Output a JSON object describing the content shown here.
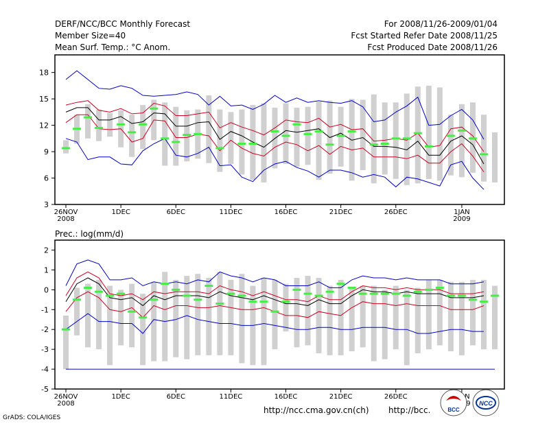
{
  "header": {
    "left": [
      "DERF/NCC/BCC Monthly Forecast",
      "Member Size=40",
      "Mean Surf. Temp.: °C Anom."
    ],
    "right": [
      "For 2008/11/26-2009/01/04",
      "Fcst Started Refer Date 2008/11/25",
      "Fcst Produced Date 2008/11/26"
    ]
  },
  "footer": {
    "url1": "http://ncc.cma.gov.cn(ch)",
    "url2": "http://bcc.",
    "grads": "GrADS: COLA/IGES",
    "logo1": "BCC",
    "logo2": "NCC"
  },
  "colors": {
    "envelope": "#0000cc",
    "spread": "#cc0022",
    "mean": "#000000",
    "obs": "#44ee44",
    "box": "#d0d0d0"
  },
  "chart_data": [
    {
      "type": "line",
      "title": "Mean Surf. Temp.: °C Anom.",
      "x_ticks": [
        "26NOV\n2008",
        "1DEC",
        "6DEC",
        "11DEC",
        "16DEC",
        "21DEC",
        "26DEC",
        "1JAN\n2009"
      ],
      "ylim": [
        3,
        20
      ],
      "y_ticks": [
        3,
        6,
        9,
        12,
        15,
        18
      ],
      "days": 40,
      "series": [
        {
          "name": "max",
          "values": [
            17.2,
            18.2,
            17.2,
            16.2,
            16.1,
            16.5,
            16.2,
            15.4,
            15.3,
            15.4,
            15.5,
            15.8,
            15.5,
            14.3,
            15.3,
            14.2,
            14.3,
            13.8,
            14.4,
            15.4,
            14.6,
            15.1,
            14.6,
            14.8,
            14.6,
            14.5,
            14.8,
            14.1,
            12.4,
            12.6,
            13.5,
            14.2,
            15.2,
            12.0,
            12.1,
            13.1,
            13.8,
            12.6,
            10.4,
            null
          ]
        },
        {
          "name": "upper",
          "values": [
            14.3,
            14.6,
            14.8,
            13.7,
            13.5,
            13.9,
            13.3,
            13.4,
            14.5,
            14.2,
            13.1,
            13.1,
            13.3,
            13.5,
            11.7,
            12.3,
            11.8,
            11.4,
            10.9,
            11.7,
            12.6,
            12.4,
            12.3,
            12.8,
            11.8,
            12.1,
            11.5,
            11.6,
            10.2,
            10.3,
            10.5,
            10.3,
            11.1,
            9.5,
            9.7,
            11.6,
            11.8,
            10.8,
            9.0,
            null
          ]
        },
        {
          "name": "mean",
          "values": [
            13.5,
            14.0,
            14.0,
            12.6,
            12.6,
            13.0,
            12.2,
            12.4,
            13.4,
            13.3,
            11.9,
            11.9,
            12.3,
            12.4,
            10.4,
            11.3,
            10.8,
            10.1,
            9.5,
            10.5,
            11.4,
            11.2,
            11.4,
            11.6,
            10.6,
            11.1,
            10.3,
            10.6,
            9.6,
            9.6,
            9.5,
            9.2,
            10.2,
            8.6,
            8.6,
            10.2,
            10.8,
            9.8,
            7.6,
            null
          ]
        },
        {
          "name": "lower",
          "values": [
            12.3,
            13.2,
            13.2,
            11.6,
            11.5,
            11.6,
            10.1,
            10.5,
            12.6,
            12.5,
            10.6,
            10.6,
            11.0,
            10.8,
            9.1,
            10.3,
            9.4,
            8.8,
            8.5,
            9.5,
            10.1,
            9.8,
            9.1,
            9.7,
            8.7,
            9.6,
            9.2,
            9.4,
            8.4,
            8.4,
            8.4,
            8.2,
            8.6,
            7.7,
            7.7,
            9.0,
            9.9,
            8.5,
            6.7,
            null
          ]
        },
        {
          "name": "min",
          "values": [
            10.5,
            10.1,
            8.1,
            8.4,
            8.4,
            7.6,
            7.5,
            9.1,
            9.9,
            10.5,
            8.6,
            8.4,
            8.8,
            9.5,
            7.4,
            7.5,
            6.1,
            5.6,
            6.9,
            7.6,
            7.9,
            7.2,
            6.8,
            6.1,
            6.9,
            6.9,
            6.6,
            6.1,
            6.4,
            6.1,
            5.0,
            6.1,
            5.9,
            5.5,
            5.1,
            7.5,
            7.9,
            6.0,
            4.7,
            null
          ]
        }
      ],
      "boxes": [
        [
          8.8,
          10.3
        ],
        [
          9.9,
          13.2
        ],
        [
          10.5,
          14.4
        ],
        [
          10.2,
          13.8
        ],
        [
          10.7,
          13.4
        ],
        [
          9.5,
          13.7
        ],
        [
          8.4,
          13.2
        ],
        [
          9.3,
          14.3
        ],
        [
          10.3,
          14.9
        ],
        [
          7.4,
          14.6
        ],
        [
          7.4,
          14.1
        ],
        [
          7.9,
          13.7
        ],
        [
          8.2,
          13.8
        ],
        [
          7.7,
          15.4
        ],
        [
          6.7,
          13.8
        ],
        [
          7.6,
          13.5
        ],
        [
          6.4,
          13.8
        ],
        [
          5.8,
          14.3
        ],
        [
          5.5,
          14.5
        ],
        [
          7.1,
          14.0
        ],
        [
          7.6,
          14.5
        ],
        [
          7.3,
          14.0
        ],
        [
          7.5,
          14.1
        ],
        [
          5.8,
          14.7
        ],
        [
          6.5,
          14.8
        ],
        [
          7.3,
          14.1
        ],
        [
          5.7,
          15.0
        ],
        [
          6.9,
          14.9
        ],
        [
          5.4,
          15.5
        ],
        [
          6.4,
          14.6
        ],
        [
          5.9,
          14.6
        ],
        [
          5.2,
          15.6
        ],
        [
          5.4,
          16.4
        ],
        [
          5.9,
          16.5
        ],
        [
          5.7,
          16.3
        ],
        [
          6.3,
          13.2
        ],
        [
          6.1,
          14.4
        ],
        [
          6.6,
          14.6
        ],
        [
          5.6,
          13.2
        ],
        [
          5.5,
          11.2
        ]
      ],
      "obs": [
        9.4,
        11.6,
        12.9,
        11.7,
        null,
        12.1,
        11.2,
        12.1,
        13.9,
        10.5,
        10.1,
        10.9,
        11.0,
        null,
        9.4,
        null,
        9.9,
        9.9,
        null,
        11.3,
        10.8,
        12.1,
        11.0,
        11.3,
        9.8,
        10.8,
        11.3,
        null,
        9.8,
        9.9,
        10.5,
        10.5,
        11.1,
        9.6,
        null,
        10.8,
        11.4,
        10.5,
        8.7,
        null
      ]
    },
    {
      "type": "line",
      "title": "Prec.: log(mm/d)",
      "x_ticks": [
        "26NOV\n2008",
        "1DEC",
        "6DEC",
        "11DEC",
        "16DEC",
        "21DEC",
        "26DEC",
        "1JAN\n2009"
      ],
      "ylim": [
        -5,
        2.5
      ],
      "y_ticks": [
        -5,
        -4,
        -3,
        -2,
        -1,
        0,
        1,
        2
      ],
      "days": 40,
      "series": [
        {
          "name": "max",
          "values": [
            0.2,
            1.3,
            1.5,
            1.3,
            0.5,
            0.5,
            0.6,
            0.2,
            0.4,
            0.3,
            0.4,
            0.3,
            0.5,
            0.4,
            0.9,
            0.7,
            0.6,
            0.4,
            0.6,
            0.5,
            0.2,
            0.2,
            0.2,
            0.4,
            0.1,
            0.1,
            0.5,
            0.7,
            0.6,
            0.6,
            0.5,
            0.6,
            0.5,
            0.5,
            0.5,
            0.3,
            0.3,
            0.3,
            0.4,
            null
          ]
        },
        {
          "name": "upper",
          "values": [
            -0.3,
            0.6,
            0.9,
            0.6,
            -0.2,
            -0.3,
            -0.2,
            -0.5,
            -0.1,
            -0.2,
            -0.1,
            -0.1,
            -0.1,
            -0.2,
            0.2,
            0.0,
            -0.1,
            -0.3,
            -0.1,
            -0.3,
            -0.5,
            -0.5,
            -0.6,
            -0.3,
            -0.5,
            -0.5,
            -0.1,
            0.2,
            0.1,
            0.1,
            0.0,
            0.1,
            0.0,
            0.0,
            0.0,
            -0.2,
            -0.2,
            -0.2,
            -0.1,
            null
          ]
        },
        {
          "name": "mean",
          "values": [
            -0.6,
            0.3,
            0.6,
            0.3,
            -0.4,
            -0.5,
            -0.4,
            -0.8,
            -0.3,
            -0.5,
            -0.3,
            -0.3,
            -0.3,
            -0.4,
            -0.1,
            -0.3,
            -0.4,
            -0.5,
            -0.3,
            -0.5,
            -0.7,
            -0.7,
            -0.8,
            -0.5,
            -0.7,
            -0.7,
            -0.3,
            0.0,
            -0.1,
            -0.1,
            -0.2,
            -0.1,
            -0.2,
            -0.2,
            -0.2,
            -0.4,
            -0.4,
            -0.4,
            -0.3,
            null
          ]
        },
        {
          "name": "lower",
          "values": [
            -1.1,
            -0.4,
            -0.1,
            -0.4,
            -1.0,
            -1.1,
            -0.9,
            -1.4,
            -0.8,
            -1.0,
            -0.8,
            -0.8,
            -0.9,
            -0.9,
            -0.8,
            -0.9,
            -1.0,
            -1.0,
            -0.9,
            -1.1,
            -1.3,
            -1.3,
            -1.4,
            -1.1,
            -1.2,
            -1.3,
            -0.9,
            -0.6,
            -0.7,
            -0.7,
            -0.8,
            -0.7,
            -0.8,
            -0.8,
            -0.8,
            -1.0,
            -1.0,
            -1.0,
            -0.8,
            null
          ]
        },
        {
          "name": "min",
          "values": [
            -2.0,
            -1.6,
            -1.2,
            -1.6,
            -1.6,
            -1.7,
            -1.7,
            -2.2,
            -1.5,
            -1.6,
            -1.5,
            -1.3,
            -1.5,
            -1.6,
            -1.7,
            -1.7,
            -1.8,
            -1.8,
            -1.7,
            -1.8,
            -1.9,
            -2.0,
            -2.0,
            -1.9,
            -1.9,
            -2.0,
            -2.0,
            -1.9,
            -1.9,
            -1.9,
            -2.0,
            -2.0,
            -2.2,
            -2.2,
            -2.1,
            -2.0,
            -2.0,
            -2.1,
            -2.1,
            null
          ]
        }
      ],
      "boxes": [
        [
          -4.0,
          -1.3
        ],
        [
          -2.3,
          0.1
        ],
        [
          -2.9,
          0.3
        ],
        [
          -3.0,
          0.5
        ],
        [
          -3.8,
          0.2
        ],
        [
          -2.8,
          0.0
        ],
        [
          -2.9,
          0.3
        ],
        [
          -3.8,
          -0.2
        ],
        [
          -3.6,
          0.4
        ],
        [
          -3.6,
          0.9
        ],
        [
          -3.4,
          0.5
        ],
        [
          -3.5,
          0.7
        ],
        [
          -3.3,
          0.8
        ],
        [
          -3.3,
          0.6
        ],
        [
          -3.3,
          0.9
        ],
        [
          -3.3,
          0.5
        ],
        [
          -3.7,
          0.8
        ],
        [
          -3.8,
          0.2
        ],
        [
          -3.8,
          0.6
        ],
        [
          -3.0,
          0.5
        ],
        [
          -2.1,
          0.3
        ],
        [
          -2.9,
          0.6
        ],
        [
          -2.8,
          0.7
        ],
        [
          -3.2,
          0.6
        ],
        [
          -3.3,
          0.2
        ],
        [
          -3.3,
          0.5
        ],
        [
          -3.1,
          0.1
        ],
        [
          -2.9,
          0.2
        ],
        [
          -3.6,
          0.2
        ],
        [
          -3.5,
          0.0
        ],
        [
          -3.0,
          0.2
        ],
        [
          -3.8,
          0.0
        ],
        [
          -3.2,
          0.1
        ],
        [
          -3.0,
          0.5
        ],
        [
          -2.8,
          0.5
        ],
        [
          -3.1,
          0.4
        ],
        [
          -3.3,
          0.4
        ],
        [
          -2.8,
          0.5
        ],
        [
          -3.0,
          0.5
        ],
        [
          -3.0,
          0.2
        ]
      ],
      "obs": [
        -2.0,
        -0.5,
        0.1,
        -0.1,
        -0.3,
        -0.2,
        -1.1,
        -1.4,
        -0.5,
        0.3,
        0.0,
        -0.3,
        -0.5,
        0.2,
        -0.7,
        -0.2,
        -0.3,
        -0.6,
        -0.6,
        -1.1,
        -0.6,
        0.0,
        -0.2,
        -0.3,
        -0.1,
        0.3,
        0.1,
        -0.2,
        -0.2,
        -0.2,
        -0.2,
        -0.3,
        -0.1,
        0.0,
        0.1,
        -0.3,
        -0.3,
        -0.5,
        -0.6,
        -0.3
      ]
    }
  ]
}
